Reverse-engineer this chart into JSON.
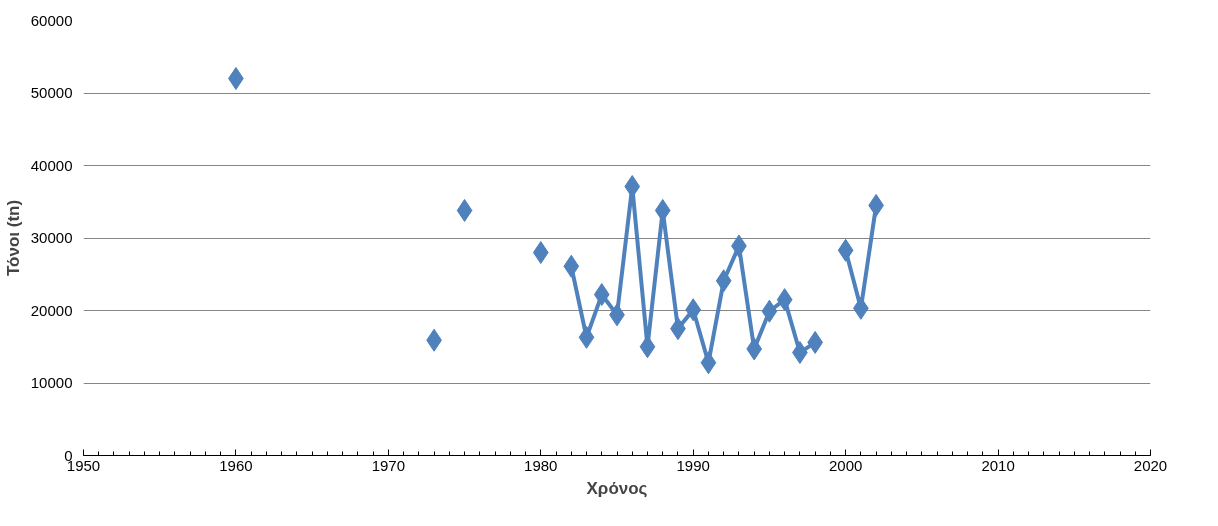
{
  "chart_data": {
    "type": "line",
    "xlabel": "Χρόνος",
    "ylabel": "Τόνοι (tn)",
    "x": [
      1960,
      1961,
      1973,
      1974,
      1975,
      1976,
      1980,
      1981,
      1982,
      1983,
      1984,
      1985,
      1986,
      1987,
      1988,
      1989,
      1990,
      1991,
      1992,
      1993,
      1994,
      1995,
      1996,
      1997,
      1998,
      1999,
      2000,
      2001,
      2002
    ],
    "series": [
      {
        "color": "#4f81bd",
        "values": [
          52000,
          null,
          15900,
          null,
          33800,
          null,
          28000,
          null,
          26100,
          16300,
          22200,
          19400,
          37100,
          15000,
          33800,
          17500,
          20100,
          12800,
          24100,
          28900,
          14700,
          19900,
          21500,
          14200,
          15600,
          null,
          28300,
          20300,
          34500
        ]
      }
    ],
    "xlim": [
      1950,
      2020
    ],
    "xticks": [
      1950,
      1960,
      1970,
      1980,
      1990,
      2000,
      2010,
      2020
    ],
    "ylim": [
      0,
      60000
    ],
    "yticks": [
      0,
      10000,
      20000,
      30000,
      40000,
      50000,
      60000
    ],
    "grid": "y",
    "marker": "diamond",
    "line_style": "solid"
  }
}
